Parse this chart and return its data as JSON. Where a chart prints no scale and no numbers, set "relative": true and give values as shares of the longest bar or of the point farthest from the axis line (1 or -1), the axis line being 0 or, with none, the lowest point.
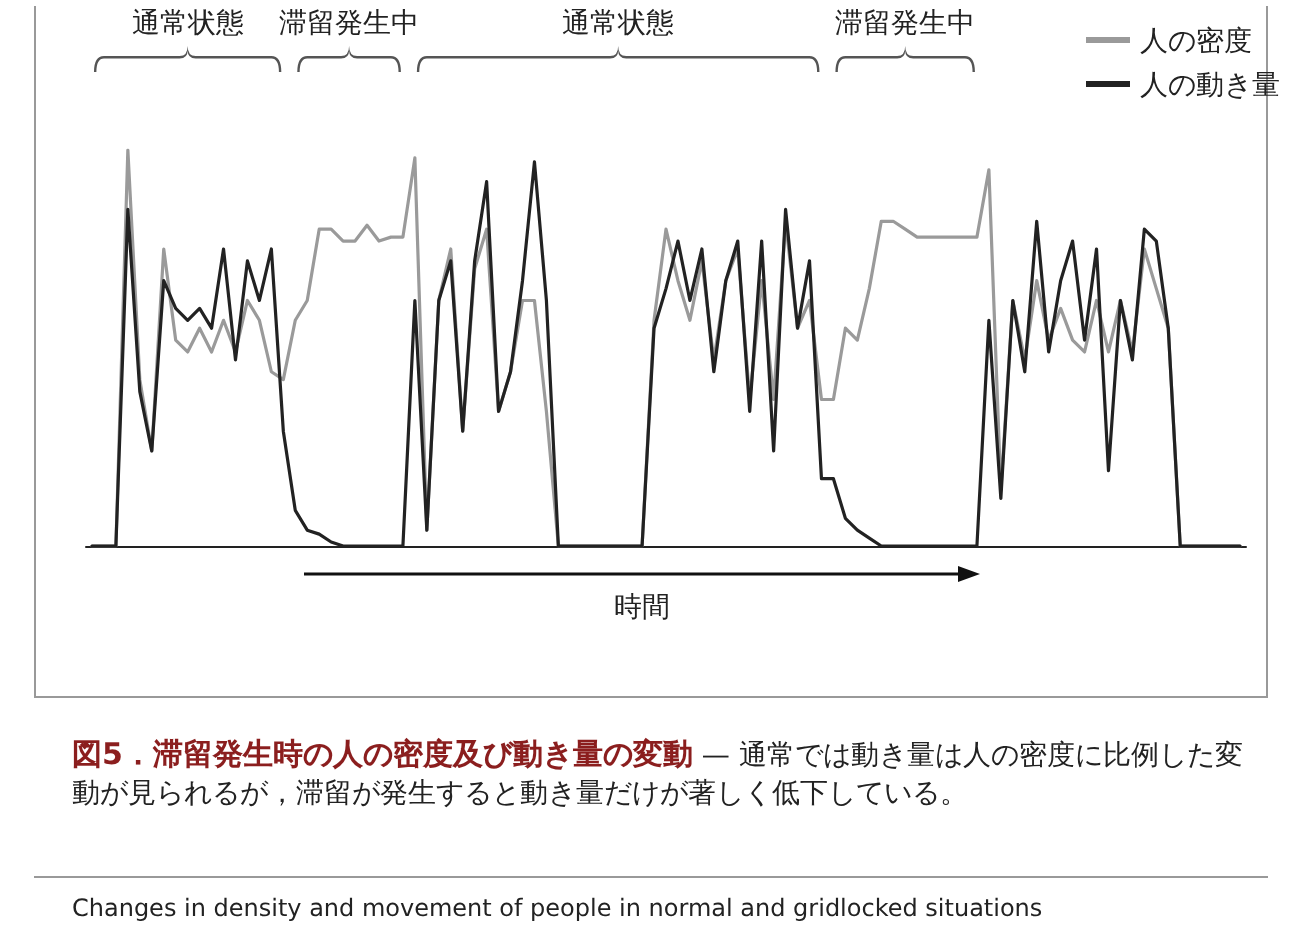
{
  "chart_data": {
    "type": "line",
    "relative": true,
    "title": "図5．滞留発生時の人の密度及び動き量の変動",
    "subtitle": "— 通常では動き量は人の密度に比例した変動が見られるが，滞留が発生すると動き量だけが著しく低下している。",
    "xlabel": "時間",
    "annotations": [
      "通常状態",
      "滞留発生中",
      "通常状態",
      "滞留発生中",
      "Changes in density and movement of people in normal and gridlocked situations"
    ],
    "categories": [
      null,
      null,
      null,
      null,
      null,
      null,
      null,
      null,
      null,
      null,
      null,
      null,
      null,
      null,
      null,
      null,
      null,
      null,
      null,
      null,
      null,
      null,
      null,
      null,
      null,
      null,
      null,
      null,
      null,
      null,
      null,
      null,
      null,
      null,
      null,
      null,
      null,
      null,
      null,
      null,
      null,
      null,
      null,
      null,
      null,
      null,
      null,
      null,
      null,
      null,
      null,
      null,
      null,
      null,
      null,
      null,
      null,
      null,
      null,
      null,
      null,
      null,
      null,
      null,
      null,
      null,
      null,
      null,
      null,
      null,
      null,
      null,
      null,
      null,
      null,
      null,
      null,
      null,
      null,
      null,
      null,
      null,
      null,
      null,
      null,
      null,
      null,
      null,
      null,
      null,
      null,
      null,
      null,
      null,
      null,
      null,
      null
    ],
    "legend": "top right",
    "line_style": "solid",
    "series": [
      {
        "name": "人の密度",
        "color": "#9a9a9a",
        "values": [
          0,
          0,
          0,
          1,
          0.42,
          0.24,
          0.75,
          0.52,
          0.49,
          0.55,
          0.49,
          0.57,
          0.49,
          0.62,
          0.57,
          0.44,
          0.42,
          0.57,
          0.62,
          0.8,
          0.8,
          0.77,
          0.77,
          0.81,
          0.77,
          0.78,
          0.78,
          0.98,
          0.04,
          0.62,
          0.75,
          0.29,
          0.7,
          0.8,
          0.34,
          0.44,
          0.62,
          0.62,
          0.34,
          0,
          0,
          0,
          0,
          0,
          0,
          0,
          0,
          0.57,
          0.8,
          0.67,
          0.57,
          0.72,
          0.47,
          0.67,
          0.75,
          0.37,
          0.67,
          0.37,
          0.82,
          0.55,
          0.62,
          0.37,
          0.37,
          0.55,
          0.52,
          0.65,
          0.82,
          0.82,
          0.8,
          0.78,
          0.78,
          0.78,
          0.78,
          0.78,
          0.78,
          0.95,
          0.14,
          0.62,
          0.47,
          0.67,
          0.52,
          0.6,
          0.52,
          0.49,
          0.62,
          0.49,
          0.62,
          0.49,
          0.75,
          0.65,
          0.55,
          0,
          0,
          0,
          0,
          0,
          0
        ]
      },
      {
        "name": "人の動き量",
        "color": "#222222",
        "values": [
          0,
          0,
          0,
          0.85,
          0.39,
          0.24,
          0.67,
          0.6,
          0.57,
          0.6,
          0.55,
          0.75,
          0.47,
          0.72,
          0.62,
          0.75,
          0.29,
          0.09,
          0.04,
          0.03,
          0.01,
          0,
          0,
          0,
          0,
          0,
          0,
          0.62,
          0.04,
          0.62,
          0.72,
          0.29,
          0.72,
          0.92,
          0.34,
          0.44,
          0.67,
          0.97,
          0.62,
          0,
          0,
          0,
          0,
          0,
          0,
          0,
          0,
          0.55,
          0.65,
          0.77,
          0.62,
          0.75,
          0.44,
          0.67,
          0.77,
          0.34,
          0.77,
          0.24,
          0.85,
          0.55,
          0.72,
          0.17,
          0.17,
          0.07,
          0.04,
          0.02,
          0,
          0,
          0,
          0,
          0,
          0,
          0,
          0,
          0,
          0.57,
          0.12,
          0.62,
          0.44,
          0.82,
          0.49,
          0.67,
          0.77,
          0.52,
          0.75,
          0.19,
          0.62,
          0.47,
          0.8,
          0.77,
          0.55,
          0,
          0,
          0,
          0,
          0,
          0
        ]
      }
    ]
  }
}
